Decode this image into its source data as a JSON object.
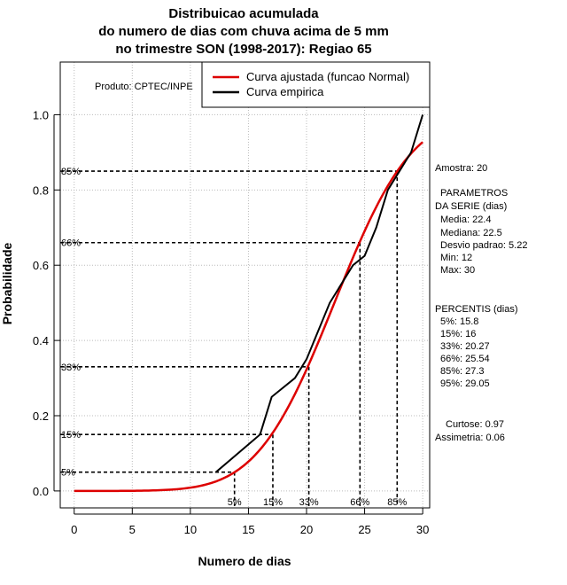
{
  "chart_data": {
    "type": "line",
    "title_lines": [
      "Distribuicao acumulada",
      "do numero de dias com chuva acima de 5 mm",
      "no trimestre SON (1998-2017): Regiao 65"
    ],
    "xlabel": "Numero de dias",
    "ylabel": "Probabilidade",
    "xlim": [
      -1.2,
      30.6
    ],
    "ylim": [
      -0.045,
      1.14
    ],
    "xticks": [
      0,
      5,
      10,
      15,
      20,
      25,
      30
    ],
    "yticks": [
      0.0,
      0.2,
      0.4,
      0.6,
      0.8,
      1.0
    ],
    "xtick_labels": [
      "0",
      "5",
      "10",
      "15",
      "20",
      "25",
      "30"
    ],
    "ytick_labels": [
      "0.0",
      "0.2",
      "0.4",
      "0.6",
      "0.8",
      "1.0"
    ],
    "grid": true,
    "credit": "Produto: CPTEC/INPE",
    "legend": [
      {
        "label": "Curva ajustada (funcao Normal)",
        "color": "#dd0000"
      },
      {
        "label": "Curva empirica",
        "color": "#000000"
      }
    ],
    "fitted": {
      "distribution": "normal",
      "mean": 22.4,
      "sd": 5.22,
      "x_range": [
        0,
        30
      ]
    },
    "empirical": {
      "x": [
        12.2,
        16.0,
        17.0,
        19.0,
        20.0,
        22.0,
        24.0,
        25.0,
        26.0,
        27.0,
        28.0,
        29.0,
        30.0
      ],
      "y": [
        0.05,
        0.15,
        0.25,
        0.3,
        0.35,
        0.5,
        0.6,
        0.625,
        0.7,
        0.8,
        0.85,
        0.9,
        1.0
      ]
    },
    "percentile_lines": [
      {
        "label": "5%",
        "prob": 0.05,
        "days": 13.8
      },
      {
        "label": "15%",
        "prob": 0.15,
        "days": 17.1
      },
      {
        "label": "33%",
        "prob": 0.33,
        "days": 20.2
      },
      {
        "label": "66%",
        "prob": 0.66,
        "days": 24.6
      },
      {
        "label": "85%",
        "prob": 0.85,
        "days": 27.8
      }
    ]
  },
  "side_panel": {
    "sample": "Amostra: 20",
    "params_title_1": "PARAMETROS",
    "params_title_2": "DA SERIE (dias)",
    "params": [
      "Media: 22.4",
      "Mediana: 22.5",
      "Desvio padrao: 5.22",
      "Min: 12",
      "Max: 30"
    ],
    "percentis_title": "PERCENTIS (dias)",
    "percentis": [
      "5%: 15.8",
      "15%: 16",
      "33%: 20.27",
      "66%: 25.54",
      "85%: 27.3",
      "95%: 29.05"
    ],
    "curtose": "Curtose: 0.97",
    "assimetria": "Assimetria: 0.06"
  }
}
